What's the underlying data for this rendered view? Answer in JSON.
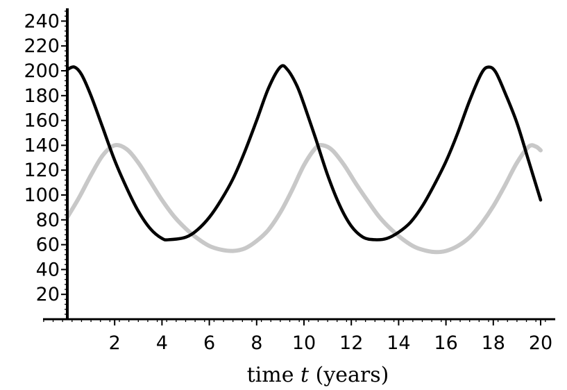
{
  "chart_data": {
    "type": "line",
    "title": "",
    "xlabel_parts": {
      "before": "time ",
      "var": "t",
      "after": " (years)"
    },
    "ylabel": "",
    "xlim": [
      0,
      20.5
    ],
    "ylim": [
      0,
      250
    ],
    "x_ticks": [
      2,
      4,
      6,
      8,
      10,
      12,
      14,
      16,
      18,
      20
    ],
    "y_ticks": [
      20,
      40,
      60,
      80,
      100,
      120,
      140,
      160,
      180,
      200,
      220,
      240
    ],
    "grid": false,
    "legend": "none",
    "series": [
      {
        "color": "#c8c8c8",
        "points": [
          [
            0,
            82
          ],
          [
            0.5,
            98
          ],
          [
            1,
            116
          ],
          [
            1.5,
            132
          ],
          [
            2,
            140
          ],
          [
            2.5,
            137
          ],
          [
            3,
            126
          ],
          [
            3.5,
            111
          ],
          [
            4,
            96
          ],
          [
            4.5,
            83
          ],
          [
            5,
            73
          ],
          [
            5.5,
            65
          ],
          [
            6,
            59
          ],
          [
            6.5,
            56
          ],
          [
            7,
            55
          ],
          [
            7.5,
            57
          ],
          [
            8,
            63
          ],
          [
            8.5,
            72
          ],
          [
            9,
            86
          ],
          [
            9.5,
            104
          ],
          [
            10,
            124
          ],
          [
            10.5,
            138
          ],
          [
            10.8,
            140
          ],
          [
            11.2,
            136
          ],
          [
            11.7,
            124
          ],
          [
            12.2,
            109
          ],
          [
            12.7,
            95
          ],
          [
            13.2,
            82
          ],
          [
            13.7,
            72
          ],
          [
            14.2,
            64
          ],
          [
            14.7,
            58
          ],
          [
            15.2,
            55
          ],
          [
            15.6,
            54
          ],
          [
            16,
            55
          ],
          [
            16.5,
            59
          ],
          [
            17,
            66
          ],
          [
            17.5,
            77
          ],
          [
            18,
            91
          ],
          [
            18.5,
            108
          ],
          [
            19,
            126
          ],
          [
            19.5,
            139
          ],
          [
            19.8,
            139
          ],
          [
            20,
            136
          ]
        ]
      },
      {
        "color": "#000000",
        "points": [
          [
            0,
            201
          ],
          [
            0.3,
            203
          ],
          [
            0.6,
            197
          ],
          [
            1,
            180
          ],
          [
            1.5,
            154
          ],
          [
            2,
            128
          ],
          [
            2.5,
            106
          ],
          [
            3,
            87
          ],
          [
            3.5,
            73
          ],
          [
            4,
            65
          ],
          [
            4.3,
            64
          ],
          [
            5,
            66
          ],
          [
            5.5,
            72
          ],
          [
            6,
            82
          ],
          [
            6.5,
            96
          ],
          [
            7,
            113
          ],
          [
            7.5,
            135
          ],
          [
            8,
            160
          ],
          [
            8.5,
            186
          ],
          [
            9,
            203
          ],
          [
            9.3,
            201
          ],
          [
            9.7,
            188
          ],
          [
            10,
            173
          ],
          [
            10.5,
            145
          ],
          [
            11,
            116
          ],
          [
            11.5,
            92
          ],
          [
            12,
            75
          ],
          [
            12.5,
            66
          ],
          [
            13,
            64
          ],
          [
            13.5,
            65
          ],
          [
            14,
            70
          ],
          [
            14.5,
            78
          ],
          [
            15,
            91
          ],
          [
            15.5,
            108
          ],
          [
            16,
            127
          ],
          [
            16.5,
            150
          ],
          [
            17,
            176
          ],
          [
            17.5,
            198
          ],
          [
            17.8,
            203
          ],
          [
            18.1,
            199
          ],
          [
            18.5,
            182
          ],
          [
            19,
            158
          ],
          [
            19.5,
            127
          ],
          [
            20,
            96
          ]
        ]
      }
    ]
  }
}
